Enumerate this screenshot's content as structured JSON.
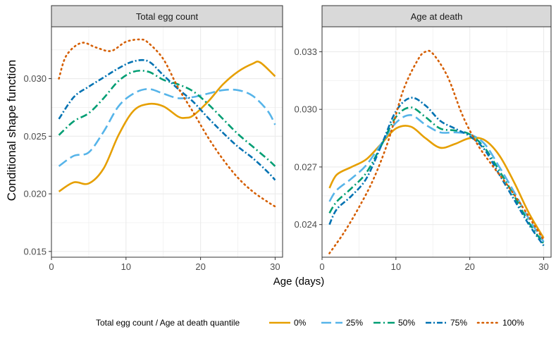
{
  "figure": {
    "ylabel": "Conditional shape function",
    "xlabel": "Age (days)"
  },
  "legend": {
    "title": "Total egg count / Age at death quantile",
    "entries": [
      {
        "label": "0%",
        "color": "#E69F00",
        "dash": "solid"
      },
      {
        "label": "25%",
        "color": "#56B4E9",
        "dash": "longdash"
      },
      {
        "label": "50%",
        "color": "#009E73",
        "dash": "dashdot"
      },
      {
        "label": "75%",
        "color": "#0072B2",
        "dash": "dashdotted"
      },
      {
        "label": "100%",
        "color": "#D55E00",
        "dash": "dotted"
      }
    ]
  },
  "chart_data": [
    {
      "type": "line",
      "title": "Total egg count",
      "xlim": [
        0,
        31
      ],
      "ylim": [
        0.0145,
        0.0345
      ],
      "xticks": [
        0,
        10,
        20,
        30
      ],
      "yticks": [
        0.015,
        0.02,
        0.025,
        0.03
      ],
      "ytick_labels": [
        "0.015",
        "0.020",
        "0.025",
        "0.030"
      ],
      "xtick_labels": [
        "0",
        "10",
        "20",
        "30"
      ],
      "series": [
        {
          "name": "0%",
          "x": [
            1,
            3,
            5,
            7,
            9,
            11,
            13,
            15,
            17,
            18,
            19,
            21,
            23,
            25,
            27,
            28,
            30
          ],
          "y": [
            0.0202,
            0.021,
            0.0209,
            0.0222,
            0.0251,
            0.0272,
            0.0278,
            0.0276,
            0.0267,
            0.0266,
            0.0268,
            0.028,
            0.0295,
            0.0306,
            0.0313,
            0.0314,
            0.0302
          ]
        },
        {
          "name": "25%",
          "x": [
            1,
            3,
            5,
            7,
            9,
            11,
            13,
            15,
            17,
            19,
            21,
            23,
            25,
            27,
            29,
            30
          ],
          "y": [
            0.0224,
            0.0233,
            0.0236,
            0.0254,
            0.0276,
            0.0287,
            0.0291,
            0.0287,
            0.0283,
            0.0284,
            0.0287,
            0.029,
            0.029,
            0.0285,
            0.0272,
            0.026
          ]
        },
        {
          "name": "50%",
          "x": [
            1,
            3,
            5,
            7,
            9,
            11,
            13,
            15,
            17,
            19,
            21,
            23,
            25,
            27,
            29,
            30
          ],
          "y": [
            0.0251,
            0.0263,
            0.027,
            0.0283,
            0.0298,
            0.0306,
            0.0306,
            0.0299,
            0.0295,
            0.0289,
            0.0278,
            0.0265,
            0.0252,
            0.0241,
            0.023,
            0.0224
          ]
        },
        {
          "name": "75%",
          "x": [
            1,
            3,
            5,
            7,
            9,
            11,
            13,
            15,
            17,
            19,
            21,
            23,
            25,
            27,
            29,
            30
          ],
          "y": [
            0.0265,
            0.0284,
            0.0293,
            0.0301,
            0.0309,
            0.0315,
            0.0315,
            0.0303,
            0.0291,
            0.028,
            0.0266,
            0.0253,
            0.0241,
            0.0231,
            0.0219,
            0.0212
          ]
        },
        {
          "name": "100%",
          "x": [
            1,
            2,
            4,
            6,
            8,
            10,
            12,
            13,
            15,
            17,
            19,
            21,
            23,
            25,
            27,
            29,
            30
          ],
          "y": [
            0.03,
            0.032,
            0.0331,
            0.0327,
            0.0324,
            0.0332,
            0.0334,
            0.0331,
            0.0317,
            0.0292,
            0.0271,
            0.0249,
            0.023,
            0.0214,
            0.0202,
            0.0193,
            0.0189
          ]
        }
      ]
    },
    {
      "type": "line",
      "title": "Age at death",
      "xlim": [
        0,
        31
      ],
      "ylim": [
        0.0223,
        0.0343
      ],
      "xticks": [
        0,
        10,
        20,
        30
      ],
      "yticks": [
        0.024,
        0.027,
        0.03,
        0.033
      ],
      "ytick_labels": [
        "0.024",
        "0.027",
        "0.030",
        "0.033"
      ],
      "xtick_labels": [
        "0",
        "10",
        "20",
        "30"
      ],
      "series": [
        {
          "name": "0%",
          "x": [
            1,
            2,
            4,
            6,
            8,
            10,
            12,
            14,
            16,
            18,
            20,
            22,
            24,
            26,
            28,
            30
          ],
          "y": [
            0.0259,
            0.0266,
            0.027,
            0.0274,
            0.0282,
            0.029,
            0.0291,
            0.0285,
            0.028,
            0.0282,
            0.0285,
            0.0284,
            0.0276,
            0.0262,
            0.0246,
            0.0233
          ]
        },
        {
          "name": "25%",
          "x": [
            1,
            2,
            4,
            6,
            8,
            10,
            12,
            14,
            16,
            18,
            20,
            22,
            24,
            26,
            28,
            30
          ],
          "y": [
            0.0252,
            0.0258,
            0.0264,
            0.0271,
            0.0282,
            0.0293,
            0.0297,
            0.0292,
            0.0288,
            0.0288,
            0.0287,
            0.0282,
            0.027,
            0.0257,
            0.0243,
            0.0231
          ]
        },
        {
          "name": "50%",
          "x": [
            1,
            2,
            4,
            6,
            8,
            10,
            12,
            14,
            16,
            18,
            20,
            22,
            24,
            26,
            28,
            30
          ],
          "y": [
            0.0246,
            0.0252,
            0.0259,
            0.0267,
            0.0281,
            0.0296,
            0.0301,
            0.0296,
            0.029,
            0.0289,
            0.0287,
            0.028,
            0.0268,
            0.0255,
            0.0241,
            0.023
          ]
        },
        {
          "name": "75%",
          "x": [
            1,
            2,
            4,
            6,
            8,
            10,
            12,
            14,
            16,
            18,
            20,
            22,
            24,
            26,
            28,
            30
          ],
          "y": [
            0.024,
            0.0248,
            0.0255,
            0.0264,
            0.0281,
            0.0299,
            0.0306,
            0.0302,
            0.0294,
            0.029,
            0.0286,
            0.0279,
            0.0266,
            0.0253,
            0.024,
            0.0229
          ]
        },
        {
          "name": "100%",
          "x": [
            1,
            3,
            5,
            7,
            9,
            11,
            13,
            14,
            15,
            17,
            19,
            21,
            23,
            25,
            27,
            29,
            30
          ],
          "y": [
            0.0225,
            0.0236,
            0.0249,
            0.0264,
            0.0284,
            0.031,
            0.0326,
            0.033,
            0.0329,
            0.0317,
            0.0297,
            0.0282,
            0.0271,
            0.0261,
            0.025,
            0.0238,
            0.0232
          ]
        }
      ]
    }
  ]
}
